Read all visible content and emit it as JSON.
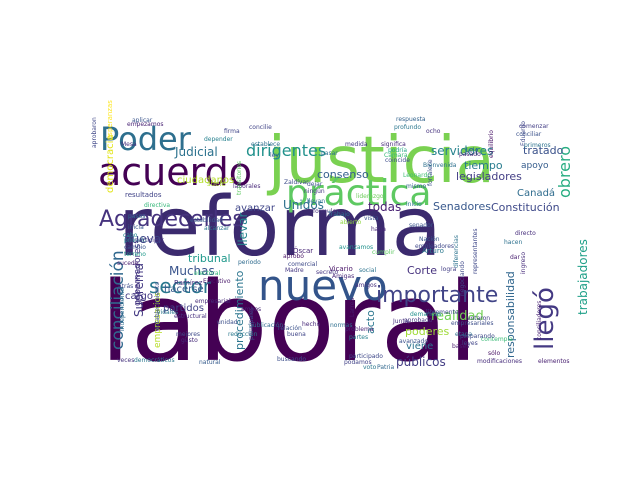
{
  "wordcloud": {
    "words": [
      {
        "text": "laboral",
        "color": "#440154"
      },
      {
        "text": "reforma",
        "color": "#3b2a6e"
      },
      {
        "text": "justicia",
        "color": "#7ad151"
      },
      {
        "text": "nuevo",
        "color": "#33548a"
      },
      {
        "text": "acuerdo",
        "color": "#440154"
      },
      {
        "text": "Poder",
        "color": "#2e6f8e"
      },
      {
        "text": "práctica",
        "color": "#5ec962"
      },
      {
        "text": "Agradecerles",
        "color": "#46337e"
      },
      {
        "text": "importante",
        "color": "#414487"
      },
      {
        "text": "conciliación",
        "color": "#31688e"
      },
      {
        "text": "sector",
        "color": "#2a788e"
      },
      {
        "text": "llegó",
        "color": "#443983"
      },
      {
        "text": "obrero",
        "color": "#27ad81"
      },
      {
        "text": "dirigentes",
        "color": "#21918c"
      },
      {
        "text": "Judicial",
        "color": "#2c728e"
      },
      {
        "text": "servidores",
        "color": "#26828e"
      },
      {
        "text": "tratado",
        "color": "#3b528b"
      },
      {
        "text": "consenso",
        "color": "#355f8d"
      },
      {
        "text": "legisladores",
        "color": "#433e85"
      },
      {
        "text": "Senadores",
        "color": "#38588c"
      },
      {
        "text": "Constitución",
        "color": "#3e4989"
      },
      {
        "text": "Canadá",
        "color": "#2f6c8e"
      },
      {
        "text": "trabajadores",
        "color": "#1fa088"
      },
      {
        "text": "tiempo",
        "color": "#287c8e"
      },
      {
        "text": "apoyo",
        "color": "#365d8d"
      },
      {
        "text": "ciudadanos",
        "color": "#b5de2b"
      },
      {
        "text": "Unidos",
        "color": "#2d708e"
      },
      {
        "text": "todas",
        "color": "#482173"
      },
      {
        "text": "avanzar",
        "color": "#404688"
      },
      {
        "text": "llevar",
        "color": "#25858e"
      },
      {
        "text": "Muchas",
        "color": "#3a548c"
      },
      {
        "text": "tribunal",
        "color": "#1f988b"
      },
      {
        "text": "Suprema",
        "color": "#443a83"
      },
      {
        "text": "procedimiento",
        "color": "#2b758e"
      },
      {
        "text": "realidad",
        "color": "#73d056"
      },
      {
        "text": "Corte",
        "color": "#46327e"
      },
      {
        "text": "acto",
        "color": "#2a768e"
      },
      {
        "text": "poderes",
        "color": "#a0da39"
      },
      {
        "text": "viene",
        "color": "#2c718e"
      },
      {
        "text": "públicos",
        "color": "#433d84"
      },
      {
        "text": "responsabilidad",
        "color": "#31678e"
      },
      {
        "text": "empresarios",
        "color": "#b8de29"
      },
      {
        "text": "nueva",
        "color": "#3f4788"
      },
      {
        "text": "gobernadores",
        "color": "#453581"
      },
      {
        "text": "hacerse",
        "color": "#38598c"
      },
      {
        "text": "partidos",
        "color": "#414287"
      },
      {
        "text": "cargo",
        "color": "#443b84"
      },
      {
        "text": "democracia",
        "color": "#e2e418"
      },
      {
        "text": "resultados",
        "color": "#404387"
      },
      {
        "text": "suele",
        "color": "#aadc32"
      },
      {
        "text": "Zaldívar",
        "color": "#3d4d8a"
      },
      {
        "text": "Ramírez",
        "color": "#46307e"
      },
      {
        "text": "Vicario",
        "color": "#481467"
      },
      {
        "text": "Madre",
        "color": "#453882"
      },
      {
        "text": "Óscar",
        "color": "#482576"
      },
      {
        "text": "Arturo",
        "color": "#2a788e"
      },
      {
        "text": "Nación",
        "color": "#38588c"
      },
      {
        "text": "Leonardo",
        "color": "#40bd72"
      },
      {
        "text": "Eduardo",
        "color": "#3f4889"
      },
      {
        "text": "Lelo",
        "color": "#33638d"
      },
      {
        "text": "Ejecutivo",
        "color": "#48186a"
      },
      {
        "text": "electoral",
        "color": "#35b779"
      },
      {
        "text": "comercial",
        "color": "#3e4a89"
      },
      {
        "text": "aprobó",
        "color": "#471365"
      },
      {
        "text": "periodo",
        "color": "#2f6b8e"
      },
      {
        "text": "secreto",
        "color": "#453581"
      },
      {
        "text": "Amigas",
        "color": "#482878"
      },
      {
        "text": "empresarial",
        "color": "#472c7a"
      },
      {
        "text": "estructural",
        "color": "#46307e"
      },
      {
        "text": "relación",
        "color": "#3b528b"
      },
      {
        "text": "buena",
        "color": "#404688"
      },
      {
        "text": "problema",
        "color": "#482475"
      },
      {
        "text": "partes",
        "color": "#27808e"
      },
      {
        "text": "podamos",
        "color": "#414287"
      },
      {
        "text": "buscando",
        "color": "#3d4e8a"
      },
      {
        "text": "principales",
        "color": "#3e4989"
      },
      {
        "text": "natural",
        "color": "#365c8d"
      },
      {
        "text": "gusto",
        "color": "#472c7a"
      },
      {
        "text": "veces",
        "color": "#46337e"
      },
      {
        "text": "democráticos",
        "color": "#2a778e"
      },
      {
        "text": "elementos",
        "color": "#482071"
      },
      {
        "text": "modificaciones",
        "color": "#472d7b"
      },
      {
        "text": "sólo",
        "color": "#471063"
      },
      {
        "text": "bases",
        "color": "#481a6c"
      },
      {
        "text": "leyes",
        "color": "#404588"
      },
      {
        "text": "etapa",
        "color": "#2e6f8e"
      },
      {
        "text": "avanzado",
        "color": "#3b518b"
      },
      {
        "text": "participado",
        "color": "#3f4889"
      },
      {
        "text": "empresariales",
        "color": "#3d4e8a"
      },
      {
        "text": "logra",
        "color": "#433e85"
      },
      {
        "text": "social",
        "color": "#2c738e"
      },
      {
        "text": "Junta",
        "color": "#46307e"
      },
      {
        "text": "demandas",
        "color": "#21918c"
      },
      {
        "text": "empleadores",
        "color": "#3f4889"
      },
      {
        "text": "dar",
        "color": "#481f70"
      },
      {
        "text": "hacen",
        "color": "#2d718e"
      },
      {
        "text": "directo",
        "color": "#472e7c"
      },
      {
        "text": "senador",
        "color": "#3a538b"
      },
      {
        "text": "inicio",
        "color": "#2a788e"
      },
      {
        "text": "haga",
        "color": "#482878"
      },
      {
        "text": "mismo",
        "color": "#34618d"
      },
      {
        "text": "fortalece",
        "color": "#3c4f8a"
      },
      {
        "text": "ningún",
        "color": "#453781"
      },
      {
        "text": "llevan",
        "color": "#2c728e"
      },
      {
        "text": "dejar",
        "color": "#3b528b"
      },
      {
        "text": "pasos",
        "color": "#31678e"
      },
      {
        "text": "inicia",
        "color": "#39568c"
      },
      {
        "text": "privado",
        "color": "#26828e"
      },
      {
        "text": "cambio",
        "color": "#3a548c"
      },
      {
        "text": "terreno",
        "color": "#1f998a"
      },
      {
        "text": "participar",
        "color": "#453581"
      },
      {
        "text": "sucede",
        "color": "#481c6e"
      },
      {
        "text": "directiva",
        "color": "#35b779"
      },
      {
        "text": "laborales",
        "color": "#482979"
      },
      {
        "text": "transitorios",
        "color": "#5ec962"
      },
      {
        "text": "ley",
        "color": "#38598c"
      },
      {
        "text": "medida",
        "color": "#443983"
      },
      {
        "text": "pasar",
        "color": "#2e6e8e"
      },
      {
        "text": "significa",
        "color": "#472a7a"
      },
      {
        "text": "podría",
        "color": "#22a884"
      },
      {
        "text": "pasado",
        "color": "#482576"
      },
      {
        "text": "Cámara",
        "color": "#38b977"
      },
      {
        "text": "coincide",
        "color": "#3e4c8a"
      },
      {
        "text": "respuesta",
        "color": "#33638d"
      },
      {
        "text": "profundo",
        "color": "#2a778e"
      },
      {
        "text": "ocho",
        "color": "#46327e"
      },
      {
        "text": "conciliar",
        "color": "#3b528b"
      },
      {
        "text": "establece",
        "color": "#2e6f8e"
      },
      {
        "text": "firma",
        "color": "#404588"
      },
      {
        "text": "depender",
        "color": "#27808e"
      },
      {
        "text": "Mesa",
        "color": "#472f7d"
      },
      {
        "text": "aplicar",
        "color": "#3a548c"
      },
      {
        "text": "empezamos",
        "color": "#482374"
      },
      {
        "text": "aprobaron",
        "color": "#3f4788"
      },
      {
        "text": "esperanzas",
        "color": "#fde725"
      },
      {
        "text": "comenzar",
        "color": "#433e85"
      },
      {
        "text": "equilibrio",
        "color": "#481467"
      },
      {
        "text": "primeros",
        "color": "#2c728e"
      },
      {
        "text": "independiente",
        "color": "#2f6b8e"
      },
      {
        "text": "atrás",
        "color": "#3e4a89"
      },
      {
        "text": "cabo",
        "color": "#24868e"
      },
      {
        "text": "formule",
        "color": "#46337e"
      },
      {
        "text": "abierto",
        "color": "#90d743"
      },
      {
        "text": "Trabajo",
        "color": "#2c738e"
      },
      {
        "text": "vista",
        "color": "#3b528b"
      },
      {
        "text": "cumplir",
        "color": "#5ec962"
      },
      {
        "text": "voto",
        "color": "#2a778e"
      },
      {
        "text": "Patria",
        "color": "#31688e"
      },
      {
        "text": "ingreso",
        "color": "#472e7c"
      },
      {
        "text": "aprobado",
        "color": "#453781"
      },
      {
        "text": "negociando",
        "color": "#3e4989"
      },
      {
        "text": "contempla",
        "color": "#3aba76"
      },
      {
        "text": "diferencias",
        "color": "#2c728e"
      },
      {
        "text": "votaron",
        "color": "#433e85"
      },
      {
        "text": "representantes",
        "color": "#3f4889"
      },
      {
        "text": "conciliadores",
        "color": "#482173"
      },
      {
        "text": "concilie",
        "color": "#414487"
      },
      {
        "text": "Bienvenida",
        "color": "#2d708e"
      },
      {
        "text": "Larrea",
        "color": "#481d6f"
      },
      {
        "text": "preparando",
        "color": "#3e4a89"
      },
      {
        "text": "avanzamos",
        "color": "#21918c"
      },
      {
        "text": "publicación",
        "color": "#2f6c8e"
      },
      {
        "text": "unidad",
        "color": "#3c4f8a"
      },
      {
        "text": "hecho",
        "color": "#472a7a"
      },
      {
        "text": "normas",
        "color": "#2e6f8e"
      },
      {
        "text": "ambos",
        "color": "#482576"
      },
      {
        "text": "vidales",
        "color": "#2a768e"
      },
      {
        "text": "mejores",
        "color": "#3e4989"
      },
      {
        "text": "amigos",
        "color": "#46307e"
      },
      {
        "text": "estabilidad",
        "color": "#38598c"
      },
      {
        "text": "establecimiento",
        "color": "#3d4d8a"
      },
      {
        "text": "alcanzar",
        "color": "#2c728e"
      },
      {
        "text": "liderazgo",
        "color": "#6ccd5a"
      },
      {
        "text": "libremente",
        "color": "#3e4989"
      },
      {
        "text": "reducción",
        "color": "#2a788e"
      }
    ]
  }
}
